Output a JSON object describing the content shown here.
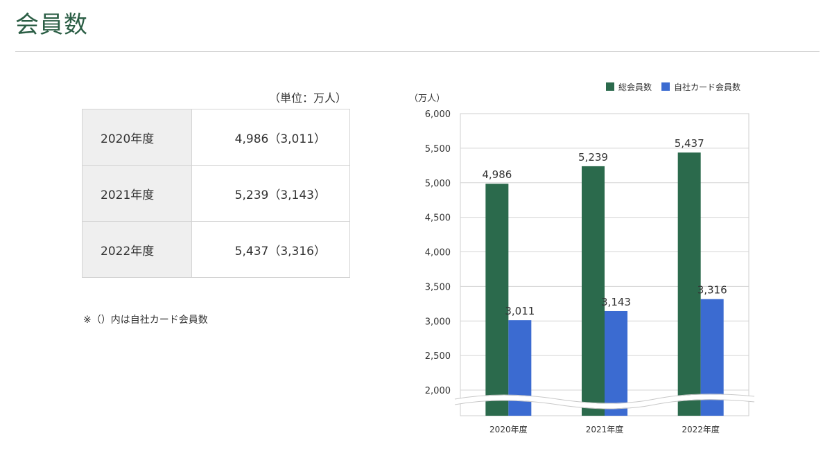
{
  "page": {
    "title": "会員数",
    "unit_note": "（単位：万人）",
    "footnote": "※（）内は自社カード会員数"
  },
  "table": {
    "rows": [
      {
        "year": "2020年度",
        "value": "4,986（3,011）"
      },
      {
        "year": "2021年度",
        "value": "5,239（3,143）"
      },
      {
        "year": "2022年度",
        "value": "5,437（3,316）"
      }
    ]
  },
  "colors": {
    "total": "#2b6a4c",
    "own_card": "#3b6bd1",
    "title": "#2b5e45"
  },
  "chart_data": {
    "type": "bar",
    "y_unit_label": "（万人）",
    "categories": [
      "2020年度",
      "2021年度",
      "2022年度"
    ],
    "series": [
      {
        "name": "総会員数",
        "values": [
          4986,
          5239,
          5437
        ],
        "labels": [
          "4,986",
          "5,239",
          "5,437"
        ]
      },
      {
        "name": "自社カード会員数",
        "values": [
          3011,
          3143,
          3316
        ],
        "labels": [
          "3,011",
          "3,143",
          "3,316"
        ]
      }
    ],
    "yticks": [
      {
        "value": 2000,
        "label": "2,000"
      },
      {
        "value": 2500,
        "label": "2,500"
      },
      {
        "value": 3000,
        "label": "3,000"
      },
      {
        "value": 3500,
        "label": "3,500"
      },
      {
        "value": 4000,
        "label": "4,000"
      },
      {
        "value": 4500,
        "label": "4,500"
      },
      {
        "value": 5000,
        "label": "5,000"
      },
      {
        "value": 5500,
        "label": "5,500"
      },
      {
        "value": 6000,
        "label": "6,000"
      }
    ],
    "ylim": [
      2000,
      6000
    ],
    "axis_break": true,
    "grid": true,
    "legend_position": "top-right"
  }
}
